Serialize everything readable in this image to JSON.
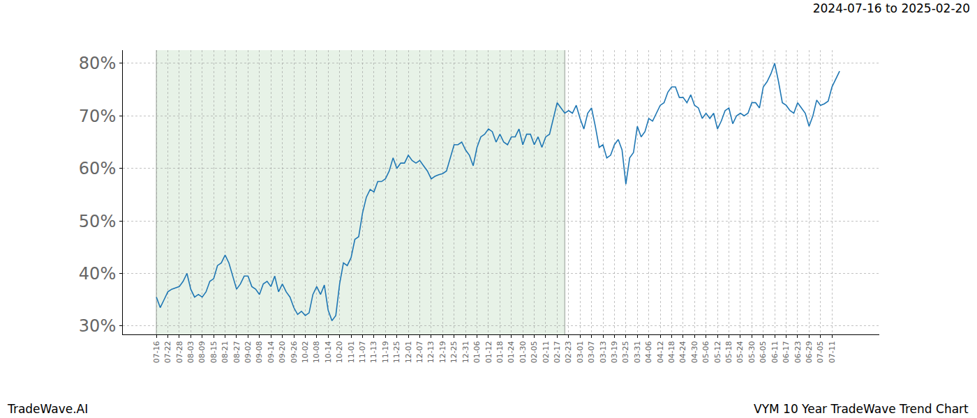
{
  "chart_data": {
    "type": "line",
    "title": "2024-07-16 to 2025-02-20",
    "annotations": [
      "TradeWave.AI",
      "VYM 10 Year TradeWave Trend Chart"
    ],
    "categories": [
      "07-16",
      null,
      null,
      "07-22",
      null,
      null,
      "07-28",
      null,
      null,
      "08-03",
      null,
      null,
      "08-09",
      null,
      null,
      "08-15",
      null,
      null,
      "08-21",
      null,
      null,
      "08-27",
      null,
      null,
      "09-02",
      null,
      null,
      "09-08",
      null,
      null,
      "09-14",
      null,
      null,
      "09-20",
      null,
      null,
      "09-26",
      null,
      null,
      "10-02",
      null,
      null,
      "10-08",
      null,
      null,
      "10-14",
      null,
      null,
      "10-20",
      null,
      null,
      "11-01",
      null,
      null,
      "11-07",
      null,
      null,
      "11-13",
      null,
      null,
      "11-19",
      null,
      null,
      "11-25",
      null,
      null,
      "12-01",
      null,
      null,
      "12-07",
      null,
      null,
      "12-13",
      null,
      null,
      "12-19",
      null,
      null,
      "12-25",
      null,
      null,
      "12-31",
      null,
      null,
      "01-06",
      null,
      null,
      "01-12",
      null,
      null,
      "01-18",
      null,
      null,
      "01-24",
      null,
      null,
      "01-30",
      null,
      null,
      "02-05",
      null,
      null,
      "02-11",
      null,
      null,
      "02-17",
      null,
      null,
      "02-23",
      null,
      null,
      "03-01",
      null,
      null,
      "03-07",
      null,
      null,
      "03-13",
      null,
      null,
      "03-19",
      null,
      null,
      "03-25",
      null,
      null,
      "03-31",
      null,
      null,
      "04-06",
      null,
      null,
      "04-12",
      null,
      null,
      "04-18",
      null,
      null,
      "04-24",
      null,
      null,
      "04-30",
      null,
      null,
      "05-06",
      null,
      null,
      "05-12",
      null,
      null,
      "05-18",
      null,
      null,
      "05-24",
      null,
      null,
      "05-30",
      null,
      null,
      "06-05",
      null,
      null,
      "06-11",
      null,
      null,
      "06-17",
      null,
      null,
      "06-23",
      null,
      null,
      "06-29",
      null,
      null,
      "07-05",
      null,
      null,
      "07-11",
      null,
      null
    ],
    "values": [
      35.5,
      33.5,
      35,
      36.5,
      37,
      37.3,
      37.5,
      38.5,
      40,
      37,
      35.5,
      36,
      35.5,
      36.5,
      38.5,
      39,
      41.5,
      42,
      43.5,
      42,
      39.5,
      37,
      38,
      39.5,
      39.5,
      37.5,
      37,
      36,
      38,
      38.5,
      37.5,
      39.5,
      36.5,
      38,
      36.5,
      35.5,
      33.5,
      32.2,
      32.8,
      32,
      32.5,
      36,
      37.5,
      36,
      37.8,
      33,
      31,
      32,
      38,
      42,
      41.5,
      43,
      46.5,
      47,
      51.5,
      54.5,
      56,
      55.5,
      57.5,
      57.5,
      58,
      59.5,
      62,
      60,
      61,
      61,
      62.5,
      61.5,
      61,
      61.5,
      60.5,
      59.5,
      58,
      58.5,
      58.8,
      59,
      59.5,
      62,
      64.5,
      64.5,
      65,
      63.5,
      62.5,
      60.5,
      64,
      66,
      66.5,
      67.5,
      67,
      65,
      66.5,
      65,
      64.5,
      66,
      66,
      67.5,
      64.5,
      66.5,
      66.5,
      64.5,
      66,
      64,
      66,
      66.5,
      69.5,
      72.5,
      71.5,
      70.5,
      71,
      70.5,
      72,
      69.5,
      67.5,
      70.5,
      71.5,
      68,
      64,
      64.5,
      62,
      62.5,
      64.5,
      65.5,
      63.5,
      57,
      62,
      63,
      68,
      66,
      67,
      69.5,
      69,
      70.5,
      72,
      72.5,
      74.5,
      75.5,
      75.5,
      73.5,
      73.5,
      72.5,
      74,
      72,
      71.5,
      69.5,
      70.5,
      69.5,
      70.5,
      67.5,
      69,
      71,
      71.5,
      68.5,
      70,
      70.5,
      70,
      70.5,
      72.5,
      72.5,
      71.5,
      75.5,
      76.5,
      78,
      80,
      76.5,
      72.5,
      72,
      71,
      70.5,
      72.5,
      71.5,
      70.5,
      68,
      70,
      73,
      72,
      72.3,
      72.8,
      75.5,
      77,
      78.5
    ],
    "color": "#1f77b4",
    "highlight_range": [
      0,
      107
    ],
    "xlim": [
      -8.8,
      189.4
    ],
    "ylim": [
      28.4,
      82.5
    ],
    "yticks": [
      {
        "value": 30,
        "label": "30%"
      },
      {
        "value": 40,
        "label": "40%"
      },
      {
        "value": 50,
        "label": "50%"
      },
      {
        "value": 60,
        "label": "60%"
      },
      {
        "value": 70,
        "label": "70%"
      },
      {
        "value": 80,
        "label": "80%"
      }
    ],
    "grid": true
  }
}
